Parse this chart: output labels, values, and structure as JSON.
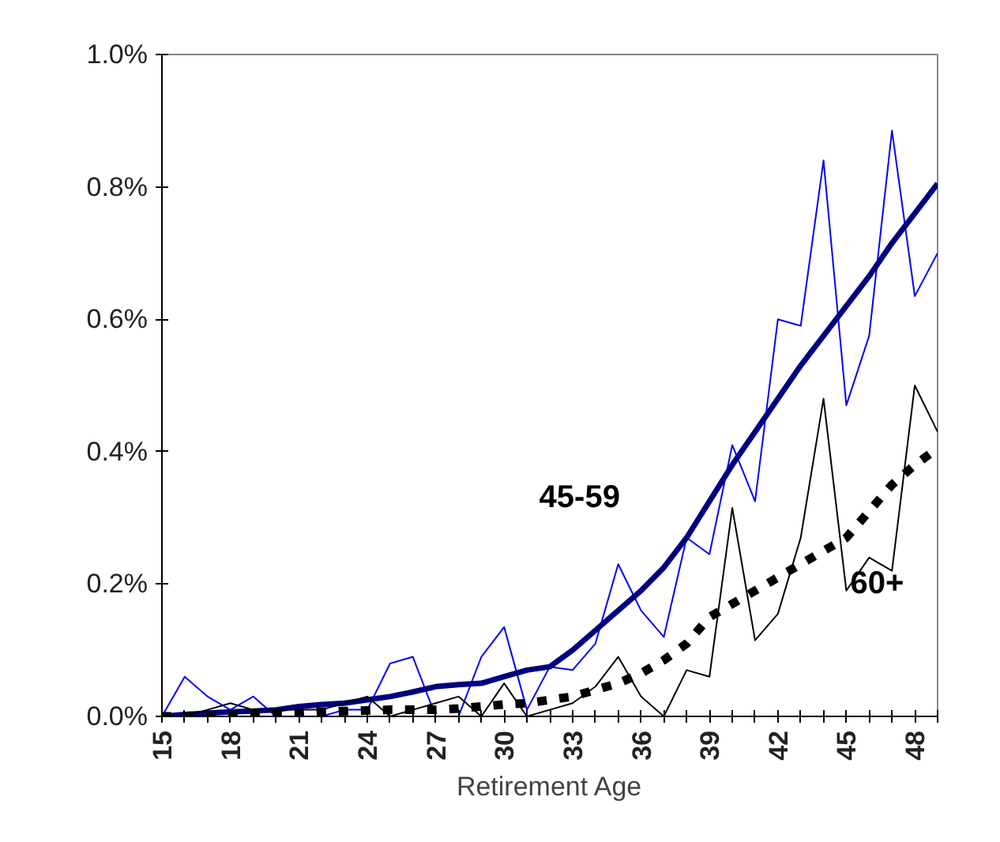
{
  "chart_data": {
    "type": "line",
    "xlabel": "Retirement Age",
    "x": [
      15,
      16,
      17,
      18,
      19,
      20,
      21,
      22,
      23,
      24,
      25,
      26,
      27,
      28,
      29,
      30,
      31,
      32,
      33,
      34,
      35,
      36,
      37,
      38,
      39,
      40,
      41,
      42,
      43,
      44,
      45,
      46,
      47,
      48,
      49
    ],
    "series": [
      {
        "color": "#0000ff",
        "line_style": "solid",
        "values": [
          0,
          0.06,
          0.03,
          0.01,
          0.03,
          0,
          0,
          0,
          0.01,
          0.01,
          0.08,
          0.09,
          0,
          0,
          0.09,
          0.135,
          0.01,
          0.075,
          0.07,
          0.11,
          0.23,
          0.16,
          0.12,
          0.27,
          0.245,
          0.41,
          0.325,
          0.6,
          0.59,
          0.84,
          0.47,
          0.575,
          0.885,
          0.635,
          0.7
        ]
      },
      {
        "name": "45-59",
        "color": "#000080",
        "line_style": "solid",
        "values": [
          0,
          0.003,
          0.005,
          0.007,
          0.008,
          0.01,
          0.015,
          0.018,
          0.02,
          0.025,
          0.03,
          0.037,
          0.045,
          0.048,
          0.05,
          0.06,
          0.07,
          0.075,
          0.1,
          0.13,
          0.16,
          0.19,
          0.225,
          0.27,
          0.325,
          0.38,
          0.43,
          0.48,
          0.53,
          0.575,
          0.62,
          0.665,
          0.715,
          0.76,
          0.805
        ]
      },
      {
        "color": "#000000",
        "line_style": "solid",
        "values": [
          0,
          0,
          0.01,
          0.02,
          0.01,
          0.01,
          0.01,
          0.01,
          0.02,
          0.03,
          0,
          0.01,
          0.02,
          0.03,
          0,
          0.05,
          0,
          0.01,
          0.02,
          0.045,
          0.09,
          0.03,
          0,
          0.07,
          0.06,
          0.315,
          0.115,
          0.155,
          0.27,
          0.48,
          0.19,
          0.24,
          0.22,
          0.5,
          0.43
        ]
      },
      {
        "name": "60+",
        "color": "#000000",
        "line_style": "dashed",
        "values": [
          0,
          0,
          0,
          0.003,
          0.003,
          0.005,
          0.005,
          0.007,
          0.008,
          0.009,
          0.01,
          0.01,
          0.01,
          0.012,
          0.015,
          0.018,
          0.02,
          0.025,
          0.03,
          0.04,
          0.05,
          0.065,
          0.085,
          0.11,
          0.15,
          0.17,
          0.19,
          0.21,
          0.23,
          0.25,
          0.27,
          0.31,
          0.35,
          0.38,
          0.405
        ]
      }
    ],
    "xlim": [
      15,
      49
    ],
    "xticks": [
      15,
      18,
      21,
      24,
      27,
      30,
      33,
      36,
      39,
      42,
      45,
      48
    ],
    "ylim": [
      0,
      1
    ],
    "yticks": [
      {
        "value": 0,
        "label": "0.0%"
      },
      {
        "value": 0.2,
        "label": "0.2%"
      },
      {
        "value": 0.4,
        "label": "0.4%"
      },
      {
        "value": 0.6,
        "label": "0.6%"
      },
      {
        "value": 0.8,
        "label": "0.8%"
      },
      {
        "value": 1,
        "label": "1.0%"
      }
    ],
    "grid": false,
    "marker": "none"
  }
}
